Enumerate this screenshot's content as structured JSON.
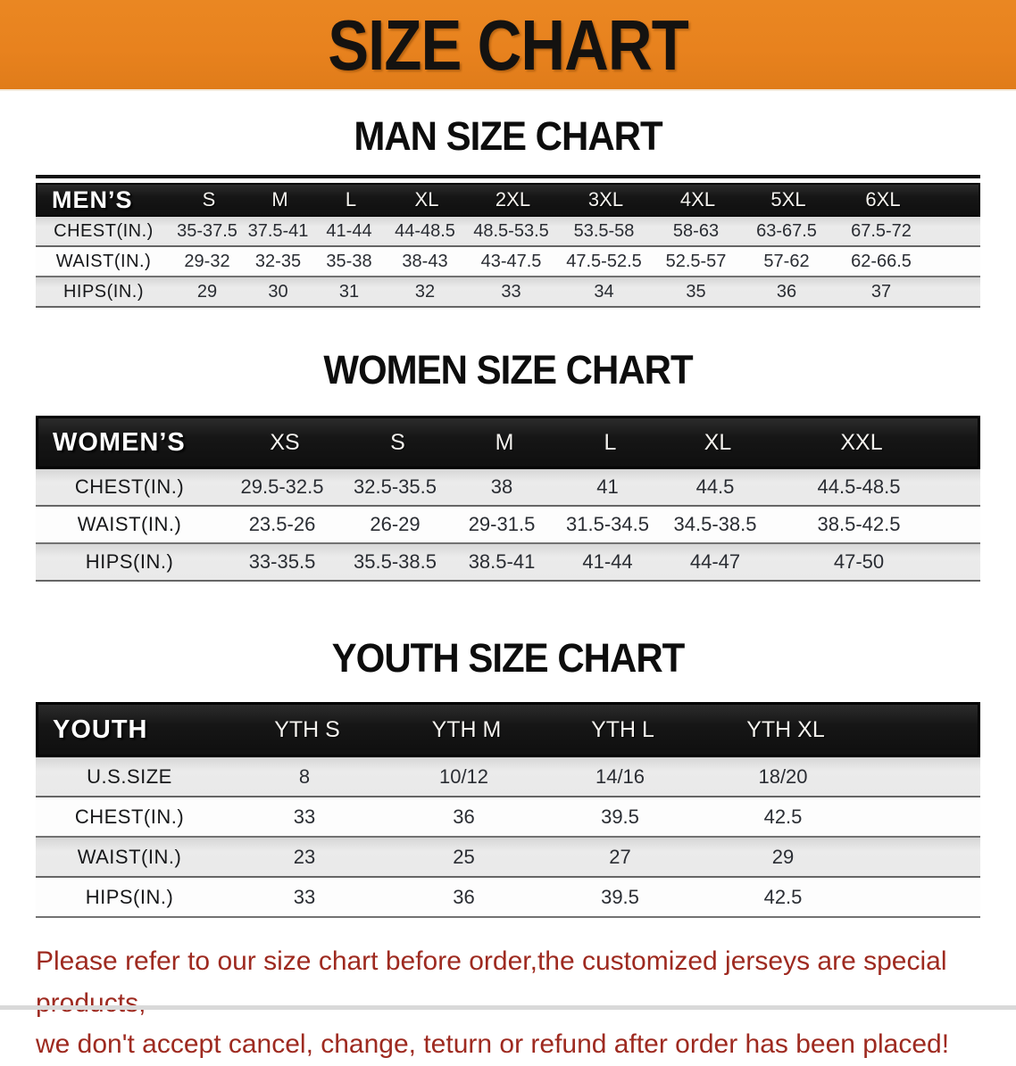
{
  "banner": {
    "title": "SIZE CHART"
  },
  "colors": {
    "banner_bg": "#E8821E",
    "table_header_bg": "#161616",
    "row_alt_bg": "#E9E9E9",
    "disclaimer_text": "#9E2A20"
  },
  "sections": [
    {
      "heading": "MAN SIZE CHART",
      "corner_label": "MEN’S",
      "columns": [
        "S",
        "M",
        "L",
        "XL",
        "2XL",
        "3XL",
        "4XL",
        "5XL",
        "6XL"
      ],
      "rows": [
        {
          "label": "CHEST(IN.)",
          "values": [
            "35-37.5",
            "37.5-41",
            "41-44",
            "44-48.5",
            "48.5-53.5",
            "53.5-58",
            "58-63",
            "63-67.5",
            "67.5-72"
          ]
        },
        {
          "label": "WAIST(IN.)",
          "values": [
            "29-32",
            "32-35",
            "35-38",
            "38-43",
            "43-47.5",
            "47.5-52.5",
            "52.5-57",
            "57-62",
            "62-66.5"
          ]
        },
        {
          "label": "HIPS(IN.)",
          "values": [
            "29",
            "30",
            "31",
            "32",
            "33",
            "34",
            "35",
            "36",
            "37"
          ]
        }
      ]
    },
    {
      "heading": "WOMEN SIZE CHART",
      "corner_label": "WOMEN’S",
      "columns": [
        "XS",
        "S",
        "M",
        "L",
        "XL",
        "XXL"
      ],
      "rows": [
        {
          "label": "CHEST(IN.)",
          "values": [
            "29.5-32.5",
            "32.5-35.5",
            "38",
            "41",
            "44.5",
            "44.5-48.5"
          ]
        },
        {
          "label": "WAIST(IN.)",
          "values": [
            "23.5-26",
            "26-29",
            "29-31.5",
            "31.5-34.5",
            "34.5-38.5",
            "38.5-42.5"
          ]
        },
        {
          "label": "HIPS(IN.)",
          "values": [
            "33-35.5",
            "35.5-38.5",
            "38.5-41",
            "41-44",
            "44-47",
            "47-50"
          ]
        }
      ]
    },
    {
      "heading": "YOUTH SIZE CHART",
      "corner_label": "YOUTH",
      "columns": [
        "YTH S",
        "YTH M",
        "YTH L",
        "YTH XL"
      ],
      "rows": [
        {
          "label": "U.S.SIZE",
          "values": [
            "8",
            "10/12",
            "14/16",
            "18/20"
          ]
        },
        {
          "label": "CHEST(IN.)",
          "values": [
            "33",
            "36",
            "39.5",
            "42.5"
          ]
        },
        {
          "label": "WAIST(IN.)",
          "values": [
            "23",
            "25",
            "27",
            "29"
          ]
        },
        {
          "label": "HIPS(IN.)",
          "values": [
            "33",
            "36",
            "39.5",
            "42.5"
          ]
        }
      ]
    }
  ],
  "disclaimer": {
    "line1": "Please refer to our size chart before order,the customized jerseys are special products,",
    "line2": "we don't accept cancel, change, teturn or refund after order has been placed!"
  }
}
